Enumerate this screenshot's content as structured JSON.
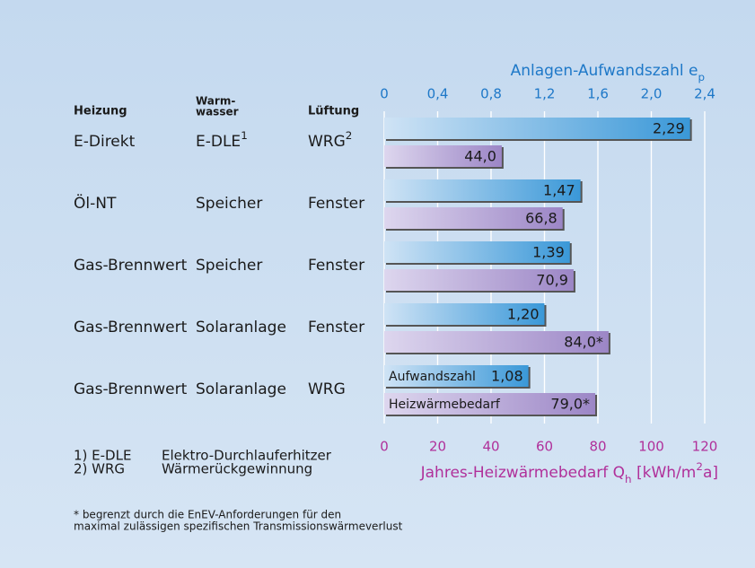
{
  "chart_data": {
    "type": "hbar",
    "columns": [
      "Heizung",
      [
        "Warm-",
        "wasser"
      ],
      "Lüftung"
    ],
    "rows": [
      {
        "heizung": "E-Direkt",
        "warmwasser": "E-DLE",
        "warmwasser_note": "1",
        "lueftung": "WRG",
        "lueftung_note": "2"
      },
      {
        "heizung": "Öl-NT",
        "warmwasser": "Speicher",
        "lueftung": "Fenster"
      },
      {
        "heizung": "Gas-Brennwert",
        "warmwasser": "Speicher",
        "lueftung": "Fenster"
      },
      {
        "heizung": "Gas-Brennwert",
        "warmwasser": "Solaranlage",
        "lueftung": "Fenster"
      },
      {
        "heizung": "Gas-Brennwert",
        "warmwasser": "Solaranlage",
        "lueftung": "WRG"
      }
    ],
    "xlabel": [
      {
        "text": "Anlagen-Aufwandszahl e"
      },
      {
        "text": "p",
        "script": "sub"
      }
    ],
    "xlim": [
      0,
      2.4
    ],
    "xticks": [
      0,
      {
        "value": 0.4,
        "label": "0,4"
      },
      {
        "value": 0.8,
        "label": "0,8"
      },
      {
        "value": 1.2,
        "label": "1,2"
      },
      {
        "value": 1.6,
        "label": "1,6"
      },
      {
        "value": 2.0,
        "label": "2,0"
      },
      {
        "value": 2.4,
        "label": "2,4"
      }
    ],
    "x2label": [
      {
        "text": "Jahres-Heizwärmebedarf Q"
      },
      {
        "text": "h",
        "script": "sub"
      },
      {
        "text": " [kWh/m"
      },
      {
        "text": "2",
        "script": "sup"
      },
      {
        "text": "a]"
      }
    ],
    "x2lim": [
      0,
      120
    ],
    "x2ticks": [
      0,
      20,
      40,
      60,
      80,
      100,
      120
    ],
    "grid": true,
    "series": [
      {
        "name": "Aufwandszahl",
        "color": "#3a98d8",
        "axis": "x",
        "values": [
          2.29,
          1.47,
          1.39,
          1.2,
          1.08
        ],
        "value_labels": [
          "2,29",
          "1,47",
          "1,39",
          "1,20",
          "1,08"
        ]
      },
      {
        "name": "Heizwärmebedarf",
        "color": "#9c86c6",
        "axis": "x2",
        "values": [
          44.0,
          66.8,
          70.9,
          84.0,
          79.0
        ],
        "value_labels": [
          "44,0",
          "66,8",
          "70,9",
          "84,0*",
          "79,0*"
        ]
      }
    ],
    "notes": [
      [
        "1) E-DLE",
        "Elektro-Durchlauferhitzer"
      ],
      [
        "2) WRG",
        "Wärmerückgewinnung"
      ]
    ],
    "footnote": [
      "* begrenzt durch die EnEV-Anforderungen für den",
      "maximal zulässigen spezifischen Transmissionswärmeverlust"
    ]
  }
}
